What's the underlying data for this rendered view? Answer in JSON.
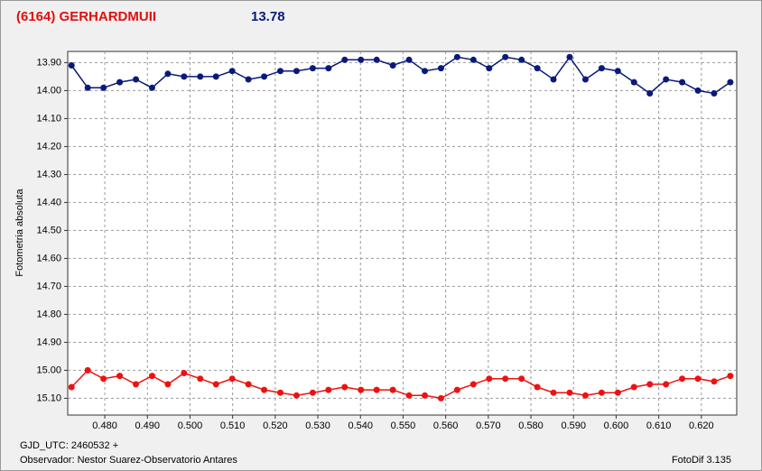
{
  "chart_data": {
    "type": "line",
    "title": "(6164) GERHARDMUII",
    "subtitle": "13.78",
    "ylabel": "Fotometria absoluta",
    "footer_left": "GJD_UTC: 2460532 +",
    "observer": "Observador: Nestor Suarez-Observatorio Antares",
    "footer_right": "FotoDif 3.135",
    "invert_y": true,
    "grid": true,
    "xlim": [
      0.4713,
      0.6283
    ],
    "ylim": [
      13.86,
      15.16
    ],
    "xticks": [
      {
        "value": 0.48,
        "label": "0.480"
      },
      {
        "value": 0.49,
        "label": "0.490"
      },
      {
        "value": 0.5,
        "label": "0.500"
      },
      {
        "value": 0.51,
        "label": "0.510"
      },
      {
        "value": 0.52,
        "label": "0.520"
      },
      {
        "value": 0.53,
        "label": "0.530"
      },
      {
        "value": 0.54,
        "label": "0.540"
      },
      {
        "value": 0.55,
        "label": "0.550"
      },
      {
        "value": 0.56,
        "label": "0.560"
      },
      {
        "value": 0.57,
        "label": "0.570"
      },
      {
        "value": 0.58,
        "label": "0.580"
      },
      {
        "value": 0.59,
        "label": "0.590"
      },
      {
        "value": 0.6,
        "label": "0.600"
      },
      {
        "value": 0.61,
        "label": "0.610"
      },
      {
        "value": 0.62,
        "label": "0.620"
      }
    ],
    "yticks": [
      {
        "value": 13.9,
        "label": "13.90"
      },
      {
        "value": 14.0,
        "label": "14.00"
      },
      {
        "value": 14.1,
        "label": "14.10"
      },
      {
        "value": 14.2,
        "label": "14.20"
      },
      {
        "value": 14.3,
        "label": "14.30"
      },
      {
        "value": 14.4,
        "label": "14.40"
      },
      {
        "value": 14.5,
        "label": "14.50"
      },
      {
        "value": 14.6,
        "label": "14.60"
      },
      {
        "value": 14.7,
        "label": "14.70"
      },
      {
        "value": 14.8,
        "label": "14.80"
      },
      {
        "value": 14.9,
        "label": "14.90"
      },
      {
        "value": 15.0,
        "label": "15.00"
      },
      {
        "value": 15.1,
        "label": "15.10"
      }
    ],
    "x": [
      0.4722,
      0.476,
      0.4797,
      0.4835,
      0.4873,
      0.4911,
      0.4948,
      0.4986,
      0.5024,
      0.5061,
      0.5099,
      0.5137,
      0.5174,
      0.5212,
      0.525,
      0.5288,
      0.5325,
      0.5363,
      0.5401,
      0.5438,
      0.5476,
      0.5514,
      0.5551,
      0.5589,
      0.5627,
      0.5665,
      0.5702,
      0.574,
      0.5778,
      0.5815,
      0.5853,
      0.5891,
      0.5928,
      0.5966,
      0.6004,
      0.6042,
      0.6079,
      0.6117,
      0.6155,
      0.6192,
      0.623,
      0.6268
    ],
    "series": [
      {
        "color": "#0a1a7a",
        "values": [
          13.91,
          13.99,
          13.99,
          13.97,
          13.96,
          13.99,
          13.94,
          13.95,
          13.95,
          13.95,
          13.93,
          13.96,
          13.95,
          13.93,
          13.93,
          13.92,
          13.92,
          13.89,
          13.89,
          13.89,
          13.91,
          13.89,
          13.93,
          13.92,
          13.88,
          13.89,
          13.92,
          13.88,
          13.89,
          13.92,
          13.96,
          13.88,
          13.96,
          13.92,
          13.93,
          13.97,
          14.01,
          13.96,
          13.97,
          14.0,
          14.01,
          13.97
        ]
      },
      {
        "color": "#ee1111",
        "values": [
          15.06,
          15.0,
          15.03,
          15.02,
          15.05,
          15.02,
          15.05,
          15.01,
          15.03,
          15.05,
          15.03,
          15.05,
          15.07,
          15.08,
          15.09,
          15.08,
          15.07,
          15.06,
          15.07,
          15.07,
          15.07,
          15.09,
          15.09,
          15.1,
          15.07,
          15.05,
          15.03,
          15.03,
          15.03,
          15.06,
          15.08,
          15.08,
          15.09,
          15.08,
          15.08,
          15.06,
          15.05,
          15.05,
          15.03,
          15.03,
          15.04,
          15.02
        ]
      }
    ]
  }
}
